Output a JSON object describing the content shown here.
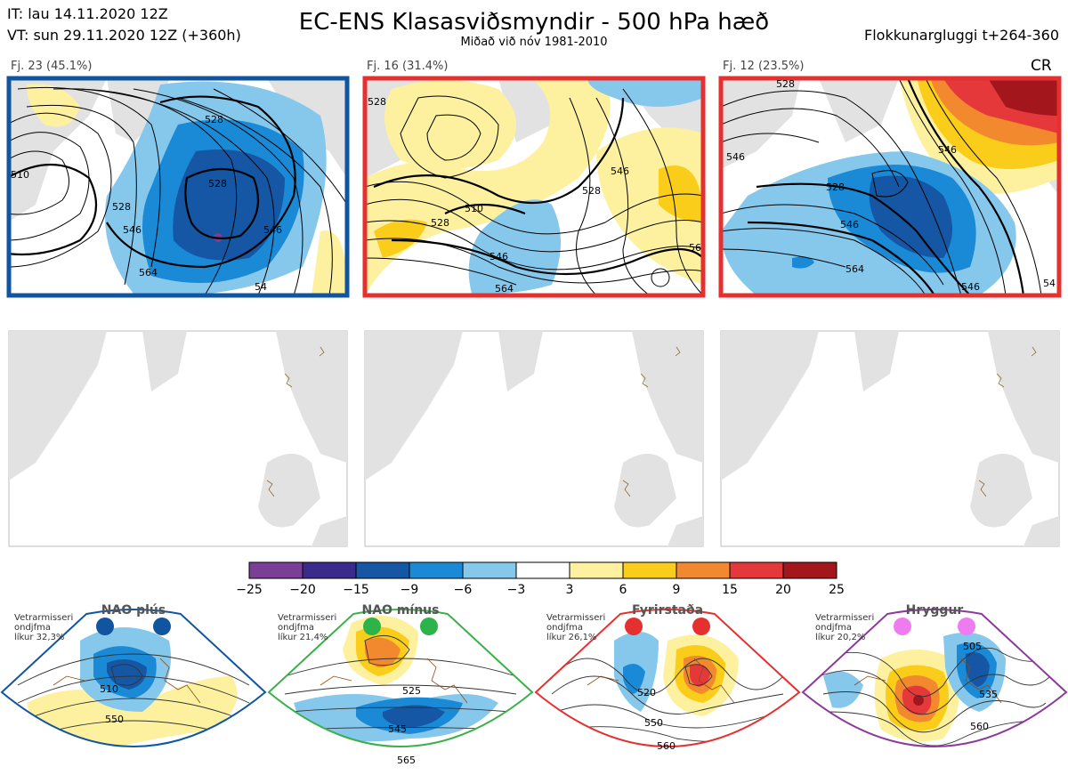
{
  "header": {
    "it_line": "IT: lau 14.11.2020 12Z",
    "vt_line": "VT: sun 29.11.2020 12Z  (+360h)",
    "title": "EC-ENS Klasasviðsmyndir - 500 hPa hæð",
    "subtitle": "Miðað við nóv 1981-2010",
    "window": "Flokkunargluggi t+264-360"
  },
  "clusters": [
    {
      "label": "Fj. 23 (45.1%)",
      "border_color": "#1155a0",
      "contours": [
        "528",
        "510",
        "528",
        "546",
        "528",
        "546",
        "564",
        "54"
      ]
    },
    {
      "label": "Fj. 16 (31.4%)",
      "border_color": "#e53030",
      "contours": [
        "528",
        "510",
        "528",
        "546",
        "528",
        "546",
        "564",
        "56"
      ]
    },
    {
      "label": "Fj. 12 (23.5%)",
      "border_color": "#e53030",
      "tag": "CR",
      "contours": [
        "528",
        "546",
        "546",
        "528",
        "546",
        "564",
        "546",
        "54"
      ]
    }
  ],
  "colorbar": {
    "ticks": [
      "−25",
      "−20",
      "−15",
      "−9",
      "−6",
      "−3",
      "3",
      "6",
      "9",
      "15",
      "20",
      "25"
    ],
    "colors": [
      "#7b3f98",
      "#3a2a8c",
      "#1557a5",
      "#1a8ad6",
      "#86c7ec",
      "#ffffff",
      "#fdf1a0",
      "#f9cd1a",
      "#f2892e",
      "#e5383b",
      "#a3171c"
    ]
  },
  "regimes": [
    {
      "name": "NAO plús",
      "stat_lines": [
        "Vetrarmisseri",
        "ondjfma",
        "líkur 32,3%"
      ],
      "frame_color": "#1155a0",
      "dot_color": "#1155a0",
      "contours": [
        "510",
        "550"
      ]
    },
    {
      "name": "NAO mínus",
      "stat_lines": [
        "Vetrarmisseri",
        "ondjfma",
        "líkur 21,4%"
      ],
      "frame_color": "#3bb04a",
      "dot_color": "#2cb34a",
      "contours": [
        "525",
        "545",
        "565"
      ]
    },
    {
      "name": "Fyrirstaða",
      "stat_lines": [
        "Vetrarmisseri",
        "ondjfma",
        "líkur 26,1%"
      ],
      "frame_color": "#e53030",
      "dot_color": "#e53030",
      "contours": [
        "520",
        "550",
        "560"
      ]
    },
    {
      "name": "Hryggur",
      "stat_lines": [
        "Vetrarmisseri",
        "ondjfma",
        "líkur 20,2%"
      ],
      "frame_color": "#8b3a9a",
      "dot_color": "#ee7cf0",
      "contours": [
        "505",
        "535",
        "560"
      ]
    }
  ]
}
